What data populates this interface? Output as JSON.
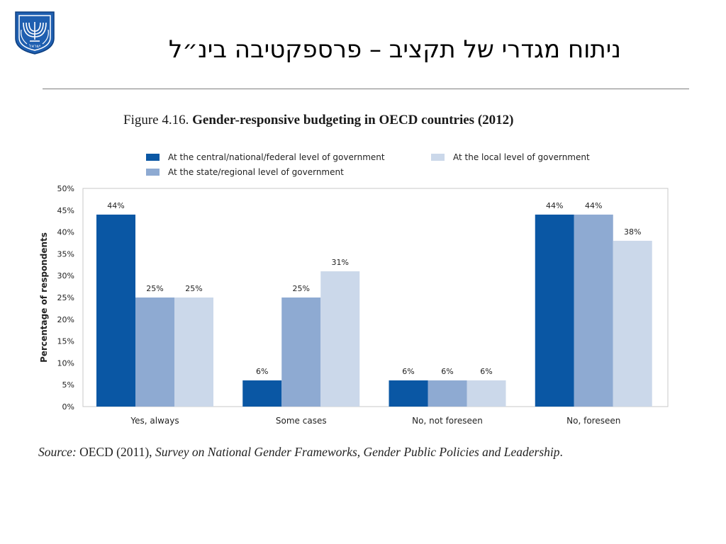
{
  "slide": {
    "title": "ניתוח מגדרי של תקציב – פרספקטיבה בינ״ל",
    "emblem_text": "ישראל",
    "emblem_color": "#1f5fb0"
  },
  "figure": {
    "number": "Figure 4.16.",
    "title": "Gender-responsive budgeting in OECD countries (2012)"
  },
  "source": {
    "prefix": "Source: OECD (2011), ",
    "title": "Survey on National Gender Frameworks, Gender Public Policies and Leadership",
    "suffix": "."
  },
  "chart_data": {
    "type": "bar",
    "ylabel": "Percentage of respondents",
    "ylim": [
      0,
      50
    ],
    "yticks": [
      "0%",
      "5%",
      "10%",
      "15%",
      "20%",
      "25%",
      "30%",
      "35%",
      "40%",
      "45%",
      "50%"
    ],
    "categories": [
      "Yes, always",
      "Some cases",
      "No, not foreseen",
      "No, foreseen"
    ],
    "series": [
      {
        "name": "At the central/national/federal level of government",
        "color": "#0a57a4",
        "values": [
          44,
          6,
          6,
          44
        ],
        "labels": [
          "44%",
          "6%",
          "6%",
          "44%"
        ]
      },
      {
        "name": "At the state/regional level of government",
        "color": "#8eaad2",
        "values": [
          25,
          25,
          6,
          44
        ],
        "labels": [
          "25%",
          "25%",
          "6%",
          "44%"
        ]
      },
      {
        "name": "At the local level of government",
        "color": "#cbd8ea",
        "values": [
          25,
          31,
          6,
          38
        ],
        "labels": [
          "25%",
          "31%",
          "6%",
          "38%"
        ]
      }
    ],
    "grid": false,
    "legend_position": "top"
  }
}
